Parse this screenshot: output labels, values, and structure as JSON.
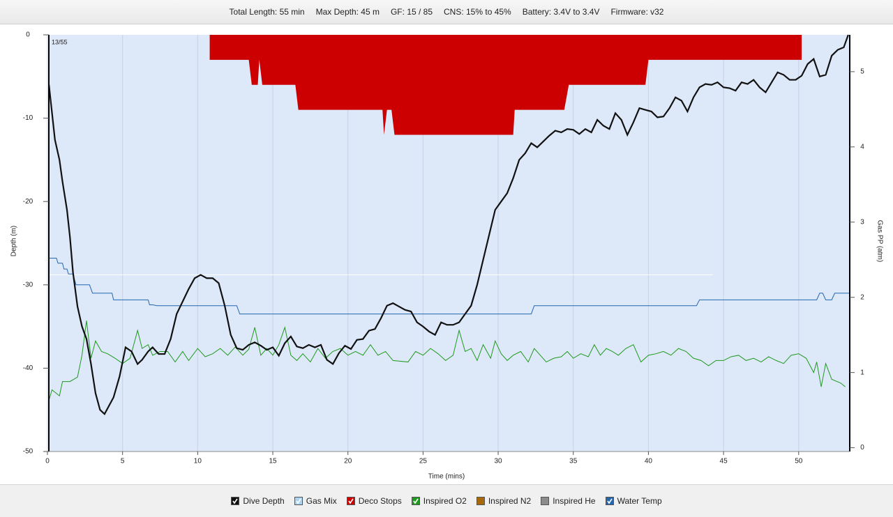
{
  "header": {
    "items": [
      "Total Length: 55 min",
      "Max Depth: 45 m",
      "GF: 15 / 85",
      "CNS: 15% to 45%",
      "Battery: 3.4V to 3.4V",
      "Firmware: v32"
    ]
  },
  "chart_data": {
    "type": "line",
    "annotation": "13/55",
    "x_label": "Time (mins)",
    "y_label": "Depth (m)",
    "y2_label": "Gas PP (atm)",
    "xlim": [
      0,
      53.4
    ],
    "xticks": [
      0,
      5,
      10,
      15,
      20,
      25,
      30,
      35,
      40,
      45,
      50
    ],
    "ylim": [
      -50,
      0
    ],
    "yticks": [
      0,
      -10,
      -20,
      -30,
      -40,
      -50
    ],
    "y2lim": [
      -0.05,
      5.49
    ],
    "y2ticks": [
      0,
      1,
      2,
      3,
      4,
      5
    ],
    "grid": true,
    "legend_position": "bottom",
    "series": [
      {
        "name": "Dive Depth",
        "color": "#111111",
        "checked": true,
        "kind": "line",
        "axis": "y",
        "x": [
          0.1,
          0.5,
          0.8,
          1.0,
          1.3,
          1.5,
          1.7,
          2.0,
          2.3,
          2.6,
          2.9,
          3.2,
          3.5,
          3.8,
          4.1,
          4.4,
          4.8,
          5.2,
          5.6,
          6.0,
          6.3,
          6.7,
          7.0,
          7.4,
          7.8,
          8.2,
          8.6,
          9.0,
          9.4,
          9.8,
          10.2,
          10.6,
          11.0,
          11.4,
          11.8,
          12.2,
          12.6,
          13.0,
          13.4,
          13.8,
          14.2,
          14.6,
          15.0,
          15.4,
          15.8,
          16.2,
          16.6,
          17.0,
          17.4,
          17.8,
          18.2,
          18.6,
          19.0,
          19.4,
          19.8,
          20.2,
          20.6,
          21.0,
          21.4,
          21.8,
          22.2,
          22.6,
          23.0,
          23.4,
          23.8,
          24.2,
          24.6,
          25.0,
          25.4,
          25.8,
          26.2,
          26.6,
          27.0,
          27.4,
          27.8,
          28.2,
          28.6,
          29.0,
          29.4,
          29.8,
          30.2,
          30.6,
          31.0,
          31.4,
          31.8,
          32.2,
          32.6,
          33.0,
          33.4,
          33.8,
          34.2,
          34.6,
          35.0,
          35.4,
          35.8,
          36.2,
          36.6,
          37.0,
          37.4,
          37.8,
          38.2,
          38.6,
          39.0,
          39.4,
          39.8,
          40.2,
          40.6,
          41.0,
          41.4,
          41.8,
          42.2,
          42.6,
          43.0,
          43.4,
          43.8,
          44.2,
          44.6,
          45.0,
          45.4,
          45.8,
          46.2,
          46.6,
          47.0,
          47.4,
          47.8,
          48.2,
          48.6,
          49.0,
          49.4,
          49.8,
          50.2,
          50.6,
          51.0,
          51.4,
          51.8,
          52.2,
          52.6,
          53.0,
          53.3
        ],
        "values": [
          -6,
          -12.6,
          -15,
          -17.6,
          -21,
          -24.3,
          -28.5,
          -32.6,
          -35,
          -36.5,
          -39.5,
          -43,
          -45,
          -45.5,
          -44.5,
          -43.5,
          -41,
          -37.5,
          -38,
          -39.5,
          -39,
          -38,
          -37.5,
          -38.3,
          -38.3,
          -36.5,
          -33.5,
          -32,
          -30.5,
          -29.2,
          -28.8,
          -29.2,
          -29.2,
          -29.8,
          -32.5,
          -36,
          -37.6,
          -37.8,
          -37.2,
          -36.9,
          -37.3,
          -37.8,
          -37.5,
          -38.5,
          -37,
          -36.2,
          -37.4,
          -37.6,
          -37.2,
          -37.5,
          -37.2,
          -39,
          -39.5,
          -38.2,
          -37.3,
          -37.7,
          -36.6,
          -36.5,
          -35.5,
          -35.3,
          -34,
          -32.5,
          -32.2,
          -32.6,
          -33,
          -33.2,
          -34.5,
          -35,
          -35.6,
          -36,
          -34.5,
          -34.8,
          -34.8,
          -34.5,
          -33.5,
          -32.5,
          -30,
          -27,
          -24,
          -21,
          -20,
          -19,
          -17.2,
          -15,
          -14.2,
          -13,
          -13.5,
          -12.8,
          -12.1,
          -11.5,
          -11.7,
          -11.3,
          -11.4,
          -11.9,
          -11.3,
          -11.7,
          -10.2,
          -10.9,
          -11.3,
          -9.4,
          -10.2,
          -12,
          -10.5,
          -8.8,
          -9,
          -9.2,
          -9.9,
          -9.8,
          -8.8,
          -7.5,
          -7.9,
          -9.2,
          -7.5,
          -6.3,
          -5.9,
          -6,
          -5.7,
          -6.3,
          -6.4,
          -6.7,
          -5.7,
          -5.9,
          -5.4,
          -6.3,
          -6.9,
          -5.7,
          -4.5,
          -4.8,
          -5.4,
          -5.4,
          -4.9,
          -3.5,
          -2.9,
          -5,
          -4.8,
          -2.5,
          -1.8,
          -1.5,
          0
        ]
      },
      {
        "name": "Gas Mix",
        "color": "#a9d3f2",
        "line_color": "#ffffff",
        "checked": true,
        "kind": "line",
        "axis": "y2",
        "x": [
          0.1,
          44.3
        ],
        "values": [
          2.3,
          2.3
        ]
      },
      {
        "name": "Deco Stops",
        "color": "#cc0000",
        "checked": true,
        "kind": "area",
        "axis": "y",
        "x": [
          10.8,
          10.8,
          13.4,
          13.6,
          14.0,
          14.1,
          14.3,
          16.5,
          16.7,
          22.3,
          22.4,
          22.6,
          22.9,
          23.1,
          31.0,
          31.1,
          34.4,
          34.7,
          39.8,
          40.0,
          50.2,
          50.2
        ],
        "values": [
          0,
          -3,
          -3,
          -6,
          -6,
          -3,
          -6,
          -6,
          -9,
          -9,
          -12,
          -9,
          -9,
          -12,
          -12,
          -9,
          -9,
          -6,
          -6,
          -3,
          -3,
          0
        ]
      },
      {
        "name": "Inspired O2",
        "color": "#1f9a1f",
        "checked": true,
        "kind": "line",
        "axis": "y2",
        "x": [
          0.1,
          0.3,
          0.8,
          1.0,
          1.5,
          2.0,
          2.3,
          2.6,
          2.9,
          3.2,
          3.6,
          4.0,
          4.5,
          5.0,
          5.5,
          6.0,
          6.3,
          6.7,
          7.0,
          7.5,
          8.0,
          8.5,
          9.0,
          9.4,
          10.0,
          10.5,
          11.0,
          11.5,
          12.0,
          12.5,
          13.0,
          13.4,
          13.8,
          14.2,
          14.6,
          15.0,
          15.4,
          15.8,
          16.2,
          16.6,
          17.0,
          17.5,
          18.0,
          18.5,
          19.0,
          19.5,
          20.0,
          20.5,
          21.0,
          21.5,
          22.0,
          22.5,
          23.0,
          24.0,
          24.5,
          25.0,
          25.5,
          26.0,
          26.5,
          27.0,
          27.4,
          27.8,
          28.2,
          28.6,
          29.0,
          29.5,
          29.8,
          30.2,
          30.6,
          31.0,
          31.5,
          32.0,
          32.4,
          32.8,
          33.2,
          33.7,
          34.2,
          34.6,
          35.0,
          35.5,
          36.0,
          36.4,
          36.8,
          37.2,
          37.6,
          38.0,
          38.5,
          39.0,
          39.5,
          40.0,
          40.5,
          41.0,
          41.5,
          42.0,
          42.5,
          43.0,
          43.5,
          44.0,
          44.5,
          45.0,
          45.5,
          46.0,
          46.5,
          47.0,
          47.5,
          48.0,
          48.5,
          49.0,
          49.5,
          50.0,
          50.5,
          51.0,
          51.2,
          51.5,
          51.8,
          52.2,
          52.8,
          53.1
        ],
        "values": [
          0.63,
          0.77,
          0.69,
          0.88,
          0.88,
          0.94,
          1.23,
          1.69,
          1.19,
          1.42,
          1.28,
          1.25,
          1.19,
          1.12,
          1.19,
          1.56,
          1.32,
          1.37,
          1.23,
          1.28,
          1.28,
          1.14,
          1.28,
          1.16,
          1.32,
          1.21,
          1.25,
          1.32,
          1.23,
          1.34,
          1.23,
          1.31,
          1.6,
          1.23,
          1.32,
          1.23,
          1.37,
          1.6,
          1.23,
          1.16,
          1.25,
          1.14,
          1.32,
          1.19,
          1.28,
          1.32,
          1.23,
          1.28,
          1.23,
          1.37,
          1.23,
          1.28,
          1.16,
          1.14,
          1.28,
          1.23,
          1.32,
          1.25,
          1.16,
          1.23,
          1.56,
          1.28,
          1.32,
          1.16,
          1.37,
          1.19,
          1.42,
          1.25,
          1.16,
          1.23,
          1.28,
          1.14,
          1.32,
          1.23,
          1.14,
          1.19,
          1.21,
          1.28,
          1.19,
          1.25,
          1.21,
          1.37,
          1.23,
          1.32,
          1.28,
          1.23,
          1.32,
          1.37,
          1.14,
          1.23,
          1.25,
          1.28,
          1.23,
          1.32,
          1.28,
          1.19,
          1.16,
          1.09,
          1.16,
          1.16,
          1.21,
          1.23,
          1.16,
          1.19,
          1.14,
          1.21,
          1.16,
          1.12,
          1.23,
          1.25,
          1.19,
          1.0,
          1.14,
          0.81,
          1.12,
          0.91,
          0.86,
          0.81
        ]
      },
      {
        "name": "Inspired N2",
        "color": "#a8690c",
        "checked": false
      },
      {
        "name": "Inspired He",
        "color": "#8c8c8c",
        "checked": false
      },
      {
        "name": "Water Temp",
        "color": "#2466b0",
        "checked": true,
        "kind": "line",
        "axis": "y",
        "x": [
          0.1,
          0.6,
          0.7,
          1.0,
          1.1,
          1.3,
          1.4,
          1.7,
          1.9,
          2.8,
          3.0,
          4.3,
          4.4,
          6.7,
          6.8,
          7.0,
          7.3,
          12.6,
          12.8,
          32.2,
          32.4,
          43.2,
          43.4,
          51.2,
          51.4,
          51.6,
          51.8,
          52.2,
          52.4,
          53.4
        ],
        "values": [
          -26.8,
          -26.8,
          -27.4,
          -27.4,
          -28.1,
          -28.1,
          -28.7,
          -28.7,
          -30,
          -30,
          -31,
          -31,
          -31.8,
          -31.8,
          -32.4,
          -32.4,
          -32.5,
          -32.5,
          -33.5,
          -33.5,
          -32.5,
          -32.5,
          -31.8,
          -31.8,
          -31,
          -31,
          -31.8,
          -31.8,
          -31,
          -31
        ]
      }
    ]
  }
}
